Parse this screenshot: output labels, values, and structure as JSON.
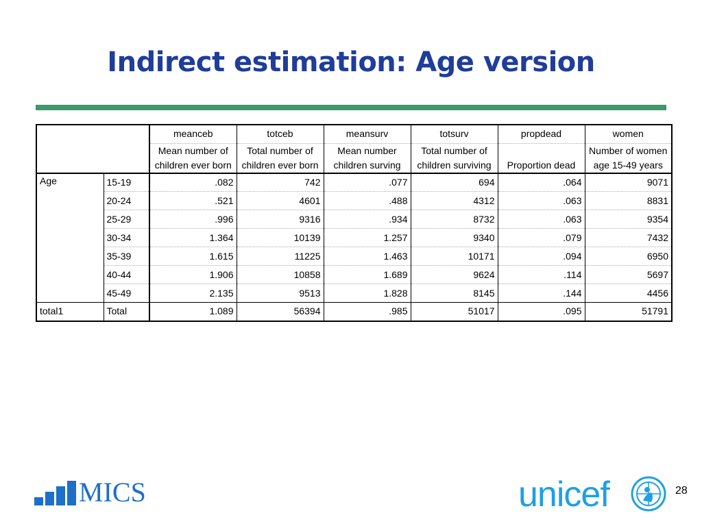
{
  "title": "Indirect estimation: Age version",
  "table": {
    "var_names": [
      "meanceb",
      "totceb",
      "meansurv",
      "totsurv",
      "propdead",
      "women"
    ],
    "var_labels": [
      "Mean number of children ever born",
      "Total number of children ever born",
      "Mean number children surving",
      "Total number of children surviving",
      "Proportion dead",
      "Number of women age 15-49 years"
    ],
    "group_label": "Age",
    "rows": [
      {
        "label": "15-19",
        "values": [
          ".082",
          "742",
          ".077",
          "694",
          ".064",
          "9071"
        ]
      },
      {
        "label": "20-24",
        "values": [
          ".521",
          "4601",
          ".488",
          "4312",
          ".063",
          "8831"
        ]
      },
      {
        "label": "25-29",
        "values": [
          ".996",
          "9316",
          ".934",
          "8732",
          ".063",
          "9354"
        ]
      },
      {
        "label": "30-34",
        "values": [
          "1.364",
          "10139",
          "1.257",
          "9340",
          ".079",
          "7432"
        ]
      },
      {
        "label": "35-39",
        "values": [
          "1.615",
          "11225",
          "1.463",
          "10171",
          ".094",
          "6950"
        ]
      },
      {
        "label": "40-44",
        "values": [
          "1.906",
          "10858",
          "1.689",
          "9624",
          ".114",
          "5697"
        ]
      },
      {
        "label": "45-49",
        "values": [
          "2.135",
          "9513",
          "1.828",
          "8145",
          ".144",
          "4456"
        ]
      }
    ],
    "total": {
      "group": "total1",
      "label": "Total",
      "values": [
        "1.089",
        "56394",
        ".985",
        "51017",
        ".095",
        "51791"
      ]
    }
  },
  "footer": {
    "mics_label": "MICS",
    "unicef_label": "unicef",
    "page_number": "28"
  },
  "colors": {
    "title": "#1f3d99",
    "rule": "#3a9a6a",
    "mics": "#1d6fc8",
    "unicef": "#1ca0e6"
  },
  "icons": {
    "mics_logo": "mics-bars-icon",
    "unicef_emblem": "unicef-emblem-icon"
  }
}
